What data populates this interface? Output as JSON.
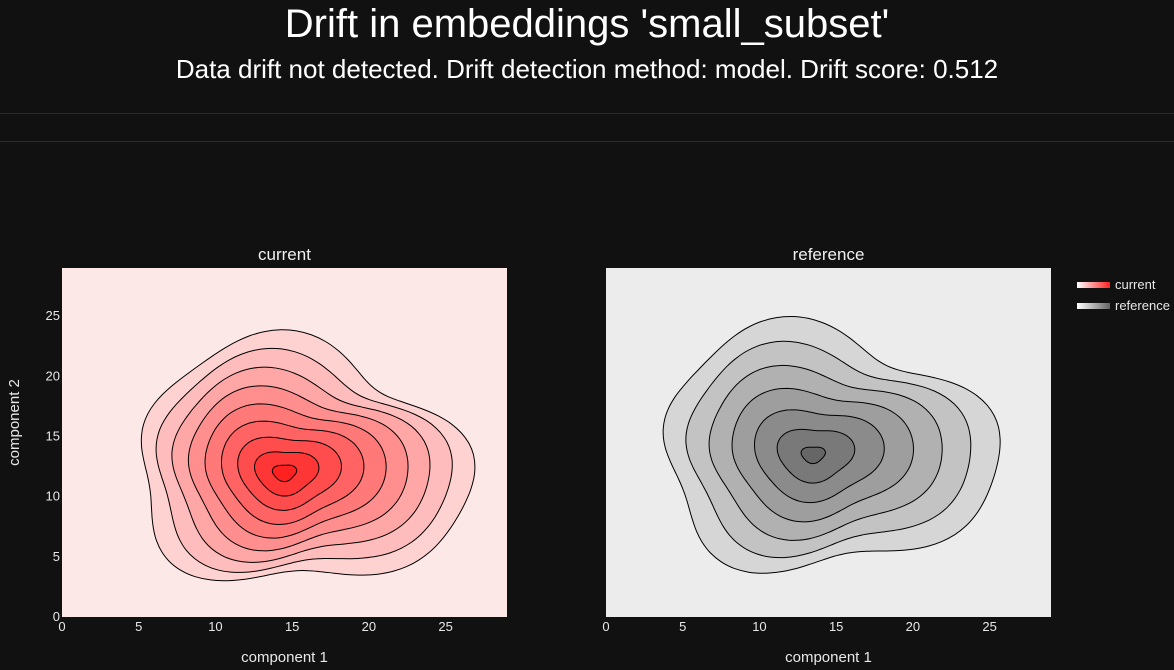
{
  "header": {
    "title": "Drift in embeddings 'small_subset'",
    "subtitle": "Data drift not detected. Drift detection method: model. Drift score: 0.512"
  },
  "chart_data": {
    "type": "contour",
    "panels": [
      {
        "title": "current",
        "xlabel": "component 1",
        "ylabel": "component 2",
        "xlim": [
          0,
          29
        ],
        "ylim": [
          0,
          29
        ],
        "xticks": [
          "0",
          "5",
          "10",
          "15",
          "20",
          "25"
        ],
        "yticks": [
          "0",
          "5",
          "10",
          "15",
          "20",
          "25"
        ],
        "density_center": [
          14.5,
          12
        ],
        "background": "#fde8e8",
        "levels": 9
      },
      {
        "title": "reference",
        "xlabel": "component 1",
        "ylabel": "",
        "xlim": [
          0,
          29
        ],
        "ylim": [
          0,
          29
        ],
        "xticks": [
          "0",
          "5",
          "10",
          "15",
          "20",
          "25"
        ],
        "yticks": [],
        "density_center": [
          13.5,
          13.5
        ],
        "background": "#ececec",
        "levels": 7
      }
    ],
    "legend": {
      "placement": "top-right",
      "entries": [
        {
          "name": "current",
          "color": "#ff2020"
        },
        {
          "name": "reference",
          "color": "#666666"
        }
      ]
    }
  }
}
